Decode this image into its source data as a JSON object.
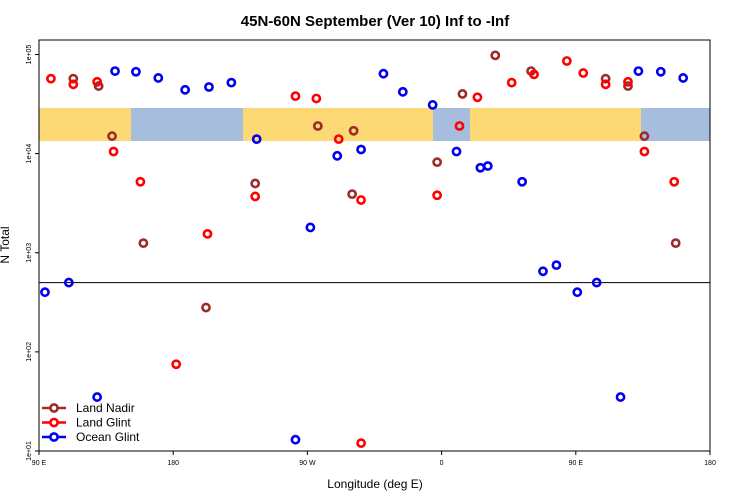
{
  "chart_data": {
    "type": "scatter",
    "title": "45N-60N September (Ver 10)   Inf to -Inf",
    "xlabel": "Longitude (deg E)",
    "ylabel": "N Total",
    "x_scale": "linear",
    "y_scale": "log10",
    "xlim": [
      90,
      540
    ],
    "ylim": [
      10,
      140000
    ],
    "x_ticks": [
      {
        "value": 90,
        "label": "90 E"
      },
      {
        "value": 180,
        "label": "180"
      },
      {
        "value": 270,
        "label": "90 W"
      },
      {
        "value": 360,
        "label": "0"
      },
      {
        "value": 450,
        "label": "90 E"
      },
      {
        "value": 540,
        "label": "180"
      }
    ],
    "y_ticks": [
      {
        "value": 10,
        "label": "1e+01"
      },
      {
        "value": 100,
        "label": "1e+02"
      },
      {
        "value": 1000,
        "label": "1e+03"
      },
      {
        "value": 10000,
        "label": "1e+04"
      },
      {
        "value": 100000,
        "label": "1e+05"
      }
    ],
    "reference_line_y": 500,
    "map_band": {
      "land_color": "#FDD976",
      "ocean_color": "#A6BDDE"
    },
    "legend_position": "bottom-left",
    "series": [
      {
        "name": "Land Nadir",
        "color": "#9E2A2A",
        "points": [
          [
            113,
            57000
          ],
          [
            130,
            48000
          ],
          [
            139,
            15000
          ],
          [
            160,
            1250
          ],
          [
            202,
            280
          ],
          [
            235,
            5000
          ],
          [
            277,
            19000
          ],
          [
            301,
            17000
          ],
          [
            300,
            3900
          ],
          [
            357,
            8200
          ],
          [
            374,
            40000
          ],
          [
            396,
            98000
          ],
          [
            420,
            68000
          ],
          [
            470,
            57000
          ],
          [
            485,
            48000
          ],
          [
            496,
            15000
          ],
          [
            517,
            1250
          ]
        ]
      },
      {
        "name": "Land Glint",
        "color": "#FF0000",
        "points": [
          [
            98,
            57000
          ],
          [
            113,
            50000
          ],
          [
            129,
            53000
          ],
          [
            140,
            10500
          ],
          [
            158,
            5200
          ],
          [
            182,
            75
          ],
          [
            203,
            1550
          ],
          [
            235,
            3700
          ],
          [
            262,
            38000
          ],
          [
            276,
            36000
          ],
          [
            291,
            14000
          ],
          [
            306,
            3400
          ],
          [
            357,
            3800
          ],
          [
            372,
            19000
          ],
          [
            384,
            37000
          ],
          [
            407,
            52000
          ],
          [
            422,
            63000
          ],
          [
            444,
            86000
          ],
          [
            455,
            65000
          ],
          [
            470,
            50000
          ],
          [
            485,
            53000
          ],
          [
            496,
            10500
          ],
          [
            516,
            5200
          ],
          [
            306,
            12
          ]
        ]
      },
      {
        "name": "Ocean Glint",
        "color": "#0000EE",
        "points": [
          [
            94,
            400
          ],
          [
            110,
            500
          ],
          [
            129,
            35
          ],
          [
            141,
            68000
          ],
          [
            155,
            67000
          ],
          [
            170,
            58000
          ],
          [
            188,
            44000
          ],
          [
            204,
            47000
          ],
          [
            219,
            52000
          ],
          [
            236,
            14000
          ],
          [
            262,
            13
          ],
          [
            272,
            1800
          ],
          [
            290,
            9500
          ],
          [
            306,
            11000
          ],
          [
            321,
            64000
          ],
          [
            334,
            42000
          ],
          [
            354,
            31000
          ],
          [
            370,
            10500
          ],
          [
            386,
            7200
          ],
          [
            391,
            7500
          ],
          [
            414,
            5200
          ],
          [
            428,
            650
          ],
          [
            437,
            750
          ],
          [
            451,
            400
          ],
          [
            464,
            500
          ],
          [
            480,
            35
          ],
          [
            492,
            68000
          ],
          [
            507,
            67000
          ],
          [
            522,
            58000
          ]
        ]
      }
    ]
  }
}
